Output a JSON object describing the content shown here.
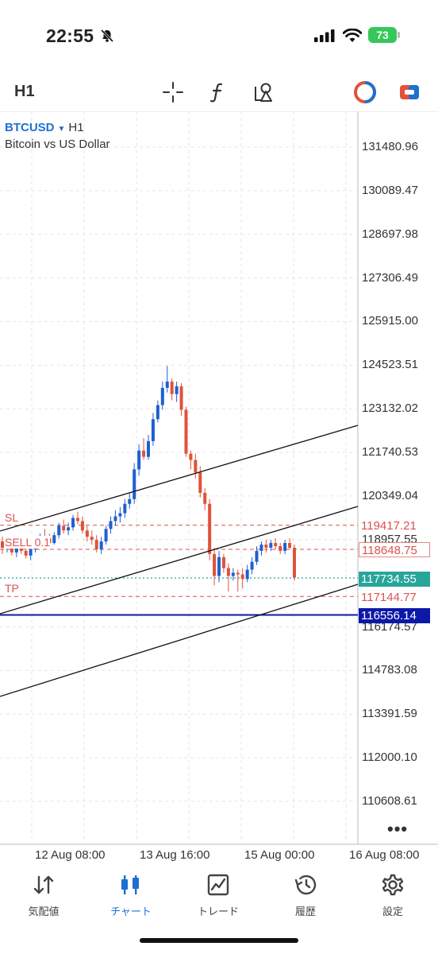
{
  "status": {
    "time": "22:55",
    "battery": "73"
  },
  "toolbar": {
    "timeframe": "H1",
    "icons": [
      "crosshair-icon",
      "function-icon",
      "shapes-icon",
      "one-click-trading-icon",
      "account-icon"
    ]
  },
  "chart": {
    "symbol": "BTCUSD",
    "timeframe": "H1",
    "description": "Bitcoin vs US Dollar",
    "price_axis": [
      "131480.96",
      "130089.47",
      "128697.98",
      "127306.49",
      "125915.00",
      "124523.51",
      "123132.02",
      "121740.53",
      "120349.04",
      "118957.55",
      "116174.57",
      "114783.08",
      "113391.59",
      "112000.10",
      "110608.61"
    ],
    "time_axis": [
      "12 Aug 08:00",
      "13 Aug 16:00",
      "15 Aug 00:00",
      "16 Aug 08:00"
    ],
    "levels": {
      "sl": {
        "label": "SL",
        "price": "119417.21"
      },
      "sell": {
        "label": "SELL 0.1",
        "price": "118648.75"
      },
      "bid": {
        "price": "117734.55"
      },
      "tp": {
        "label": "TP",
        "price": "117144.77"
      },
      "hline": {
        "price": "116556.14"
      }
    },
    "colors": {
      "bull": "#1f5fd1",
      "bear": "#e0523a",
      "bid": "#27a59a",
      "hline": "#0b18a8",
      "level": "#d9534f"
    }
  },
  "nav": {
    "items": [
      {
        "label": "気配値",
        "icon": "quotes-icon"
      },
      {
        "label": "チャート",
        "icon": "chart-icon",
        "active": true
      },
      {
        "label": "トレード",
        "icon": "trade-icon"
      },
      {
        "label": "履歴",
        "icon": "history-icon"
      },
      {
        "label": "設定",
        "icon": "settings-icon"
      }
    ]
  },
  "chart_data": {
    "type": "candlestick",
    "y_axis_ticks": [
      131480.96,
      130089.47,
      128697.98,
      127306.49,
      125915.0,
      124523.51,
      123132.02,
      121740.53,
      120349.04,
      118957.55,
      116174.57,
      114783.08,
      113391.59,
      112000.1,
      110608.61
    ],
    "x_axis_ticks": [
      "12 Aug 08:00",
      "13 Aug 16:00",
      "15 Aug 00:00",
      "16 Aug 08:00"
    ],
    "ylim": [
      110100,
      132100
    ],
    "price_lines": {
      "sl": 119417.21,
      "sell": 118648.75,
      "bid": 117734.55,
      "tp": 117144.77,
      "hline": 116556.14
    },
    "trend_lines": [
      {
        "from": [
          "11 Aug 14:00",
          118900
        ],
        "to": [
          "15 Aug 14:00",
          122600
        ]
      },
      {
        "from": [
          "11 Aug 14:00",
          116400
        ],
        "to": [
          "15 Aug 14:00",
          120100
        ]
      },
      {
        "from": [
          "11 Aug 14:00",
          114000
        ],
        "to": [
          "15 Aug 14:00",
          117700
        ]
      }
    ],
    "candles": [
      [
        118900,
        119050,
        118500,
        118700
      ],
      [
        118700,
        118950,
        118550,
        118800
      ],
      [
        118800,
        118900,
        118450,
        118550
      ],
      [
        118550,
        118800,
        118400,
        118700
      ],
      [
        118700,
        118850,
        118500,
        118600
      ],
      [
        118600,
        118750,
        118350,
        118450
      ],
      [
        118450,
        118700,
        118300,
        118650
      ],
      [
        118650,
        118900,
        118550,
        118800
      ],
      [
        118800,
        119150,
        118700,
        119050
      ],
      [
        119050,
        119300,
        118900,
        119000
      ],
      [
        119000,
        119150,
        118750,
        118850
      ],
      [
        118850,
        119200,
        118800,
        119100
      ],
      [
        119100,
        119500,
        119000,
        119400
      ],
      [
        119400,
        119600,
        119150,
        119250
      ],
      [
        119250,
        119500,
        119100,
        119350
      ],
      [
        119350,
        119750,
        119250,
        119650
      ],
      [
        119650,
        119850,
        119450,
        119550
      ],
      [
        119550,
        119700,
        119150,
        119250
      ],
      [
        119250,
        119400,
        118900,
        119050
      ],
      [
        119050,
        119250,
        118800,
        118950
      ],
      [
        118950,
        119100,
        118550,
        118650
      ],
      [
        118650,
        119050,
        118500,
        118900
      ],
      [
        118900,
        119400,
        118800,
        119300
      ],
      [
        119300,
        119700,
        119150,
        119550
      ],
      [
        119550,
        119900,
        119400,
        119700
      ],
      [
        119700,
        120000,
        119500,
        119800
      ],
      [
        119800,
        120250,
        119650,
        120100
      ],
      [
        120100,
        120450,
        119950,
        120250
      ],
      [
        120250,
        121400,
        120100,
        121200
      ],
      [
        121200,
        122000,
        121000,
        121800
      ],
      [
        121800,
        122200,
        121500,
        121600
      ],
      [
        121600,
        122300,
        121500,
        122100
      ],
      [
        122100,
        123000,
        121950,
        122800
      ],
      [
        122800,
        123400,
        122700,
        123250
      ],
      [
        123250,
        124000,
        123100,
        123800
      ],
      [
        123800,
        124500,
        123650,
        124000
      ],
      [
        124000,
        124100,
        123400,
        123600
      ],
      [
        123600,
        124000,
        123350,
        123850
      ],
      [
        123850,
        123950,
        122900,
        123100
      ],
      [
        123100,
        123200,
        121600,
        121700
      ],
      [
        121700,
        121800,
        121200,
        121500
      ],
      [
        121500,
        121700,
        120900,
        121100
      ],
      [
        121100,
        121300,
        120300,
        120450
      ],
      [
        120450,
        120600,
        119900,
        120100
      ],
      [
        120100,
        120250,
        118300,
        118500
      ],
      [
        118500,
        118700,
        117500,
        117800
      ],
      [
        117800,
        118600,
        117600,
        118400
      ],
      [
        118400,
        118500,
        117900,
        118050
      ],
      [
        118050,
        118200,
        117300,
        117800
      ],
      [
        117800,
        118050,
        117650,
        117900
      ],
      [
        117900,
        118000,
        117300,
        117850
      ],
      [
        117850,
        118050,
        117400,
        117700
      ],
      [
        117700,
        118150,
        117600,
        118000
      ],
      [
        118000,
        118400,
        117850,
        118250
      ],
      [
        118250,
        118750,
        118150,
        118600
      ],
      [
        118600,
        118900,
        118450,
        118800
      ],
      [
        118800,
        118950,
        118550,
        118700
      ],
      [
        118700,
        118950,
        118600,
        118850
      ],
      [
        118850,
        119000,
        118650,
        118750
      ],
      [
        118750,
        118850,
        118500,
        118600
      ],
      [
        118600,
        118950,
        118500,
        118850
      ],
      [
        118850,
        119000,
        118650,
        118700
      ],
      [
        118700,
        118800,
        117650,
        117750
      ]
    ]
  }
}
